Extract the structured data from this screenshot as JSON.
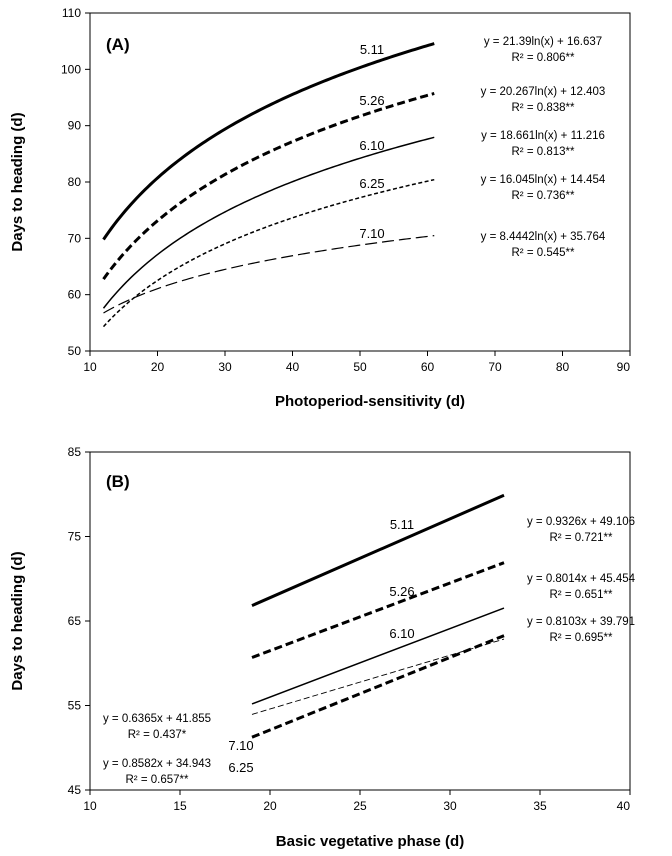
{
  "chart_data": [
    {
      "type": "line",
      "panel_label": "(A)",
      "xlabel": "Photoperiod-sensitivity (d)",
      "ylabel": "Days to heading (d)",
      "xlim": [
        10,
        90
      ],
      "ylim": [
        50,
        110
      ],
      "x_ticks": [
        "10",
        "20",
        "30",
        "40",
        "50",
        "60",
        "70",
        "80",
        "90"
      ],
      "y_ticks": [
        "50",
        "60",
        "70",
        "80",
        "90",
        "100",
        "110"
      ],
      "grid": false,
      "x_range": [
        12,
        61
      ],
      "series": [
        {
          "name": "5.11",
          "a": 21.39,
          "b": 16.637,
          "equation": "y = 21.39ln(x) + 16.637",
          "r2": "R² = 0.806**",
          "style": "thick-solid"
        },
        {
          "name": "5.26",
          "a": 20.267,
          "b": 12.403,
          "equation": "y = 20.267ln(x) + 12.403",
          "r2": "R² = 0.838**",
          "style": "thick-dash"
        },
        {
          "name": "6.10",
          "a": 18.661,
          "b": 11.216,
          "equation": "y = 18.661ln(x) + 11.216",
          "r2": "R² = 0.813**",
          "style": "solid"
        },
        {
          "name": "6.25",
          "a": 16.045,
          "b": 14.454,
          "equation": "y = 16.045ln(x) + 14.454",
          "r2": "R² = 0.736**",
          "style": "dot"
        },
        {
          "name": "7.10",
          "a": 8.4442,
          "b": 35.764,
          "equation": "y = 8.4442ln(x) + 35.764",
          "r2": "R² = 0.545**",
          "style": "long-dash"
        }
      ]
    },
    {
      "type": "line",
      "panel_label": "(B)",
      "xlabel": "Basic vegetative phase (d)",
      "ylabel": "Days to heading (d)",
      "xlim": [
        10,
        40
      ],
      "ylim": [
        45,
        85
      ],
      "x_ticks": [
        "10",
        "15",
        "20",
        "25",
        "30",
        "35",
        "40"
      ],
      "y_ticks": [
        "45",
        "55",
        "65",
        "75",
        "85"
      ],
      "grid": false,
      "x_range": [
        19,
        33
      ],
      "series": [
        {
          "name": "5.11",
          "slope": 0.9326,
          "intercept": 49.106,
          "equation": "y = 0.9326x + 49.106",
          "r2": "R² = 0.721**",
          "style": "thick-solid"
        },
        {
          "name": "5.26",
          "slope": 0.8014,
          "intercept": 45.454,
          "equation": "y = 0.8014x + 45.454",
          "r2": "R² = 0.651**",
          "style": "thick-dash"
        },
        {
          "name": "6.10",
          "slope": 0.8103,
          "intercept": 39.791,
          "equation": "y = 0.8103x + 39.791",
          "r2": "R² = 0.695**",
          "style": "solid"
        },
        {
          "name": "7.10",
          "slope": 0.6365,
          "intercept": 41.855,
          "equation": "y = 0.6365x + 41.855",
          "r2": "R² = 0.437*",
          "style": "thin-dash"
        },
        {
          "name": "6.25",
          "slope": 0.8582,
          "intercept": 34.943,
          "equation": "y = 0.8582x + 34.943",
          "r2": "R² = 0.657**",
          "style": "thick-dash"
        }
      ]
    }
  ]
}
